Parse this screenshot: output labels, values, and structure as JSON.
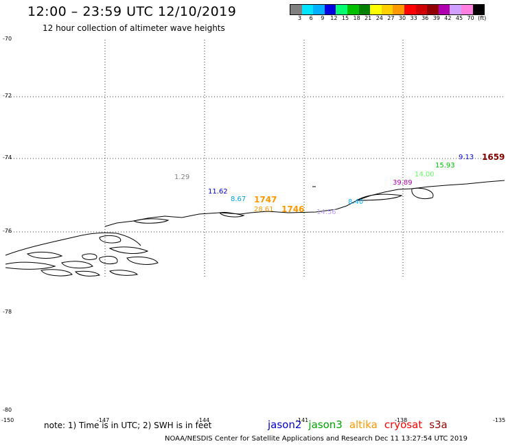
{
  "header": {
    "title": "12:00 – 23:59 UTC 12/10/2019",
    "subtitle": "12 hour collection of altimeter wave heights"
  },
  "colorbar": {
    "colors": [
      "#808080",
      "#00e5ff",
      "#00b0ff",
      "#0000e0",
      "#00ff70",
      "#00c000",
      "#008000",
      "#ffff00",
      "#ffd000",
      "#ff9900",
      "#ff0000",
      "#d00000",
      "#900000",
      "#b000b0",
      "#d0a0ff",
      "#ff80e0",
      "#000000"
    ],
    "labels": [
      "3",
      "6",
      "9",
      "12",
      "15",
      "18",
      "21",
      "24",
      "27",
      "30",
      "33",
      "36",
      "39",
      "42",
      "45",
      "70",
      "(ft)"
    ]
  },
  "axes": {
    "lat_labels": [
      "-70",
      "-72",
      "-74",
      "-76",
      "-78",
      "-80"
    ],
    "lon_labels": [
      "-150",
      "-147",
      "-144",
      "-141",
      "-138",
      "-135"
    ]
  },
  "wave_labels": [
    {
      "text": "1.29",
      "color": "#808080"
    },
    {
      "text": "11.62",
      "color": "#0000cc"
    },
    {
      "text": "8.67",
      "color": "#00a0e0"
    },
    {
      "text": "1747",
      "color": "#ff9900"
    },
    {
      "text": "28.61",
      "color": "#ff9900"
    },
    {
      "text": "1746",
      "color": "#ff9900"
    },
    {
      "text": "14.56",
      "color": "#c0a0ff"
    },
    {
      "text": "8.40",
      "color": "#00b0ff"
    },
    {
      "text": "39.89",
      "color": "#b000b0"
    },
    {
      "text": "14.00",
      "color": "#66ff66"
    },
    {
      "text": "15.93",
      "color": "#00c000"
    },
    {
      "text": "9.13",
      "color": "#0000cc"
    },
    {
      "text": "1659",
      "color": "#800000"
    }
  ],
  "footer": {
    "note": "note:  1)  Time is in UTC;  2)  SWH is in feet",
    "satellites": [
      {
        "name": "jason2",
        "color": "#0000cc"
      },
      {
        "name": "jason3",
        "color": "#00a000"
      },
      {
        "name": "altika",
        "color": "#ff9900"
      },
      {
        "name": "cryosat",
        "color": "#ff0000"
      },
      {
        "name": "s3a",
        "color": "#900000"
      }
    ],
    "credit": "NOAA/NESDIS Center for Satellite Applications and Research      Dec 11 13:27:54 UTC 2019"
  }
}
